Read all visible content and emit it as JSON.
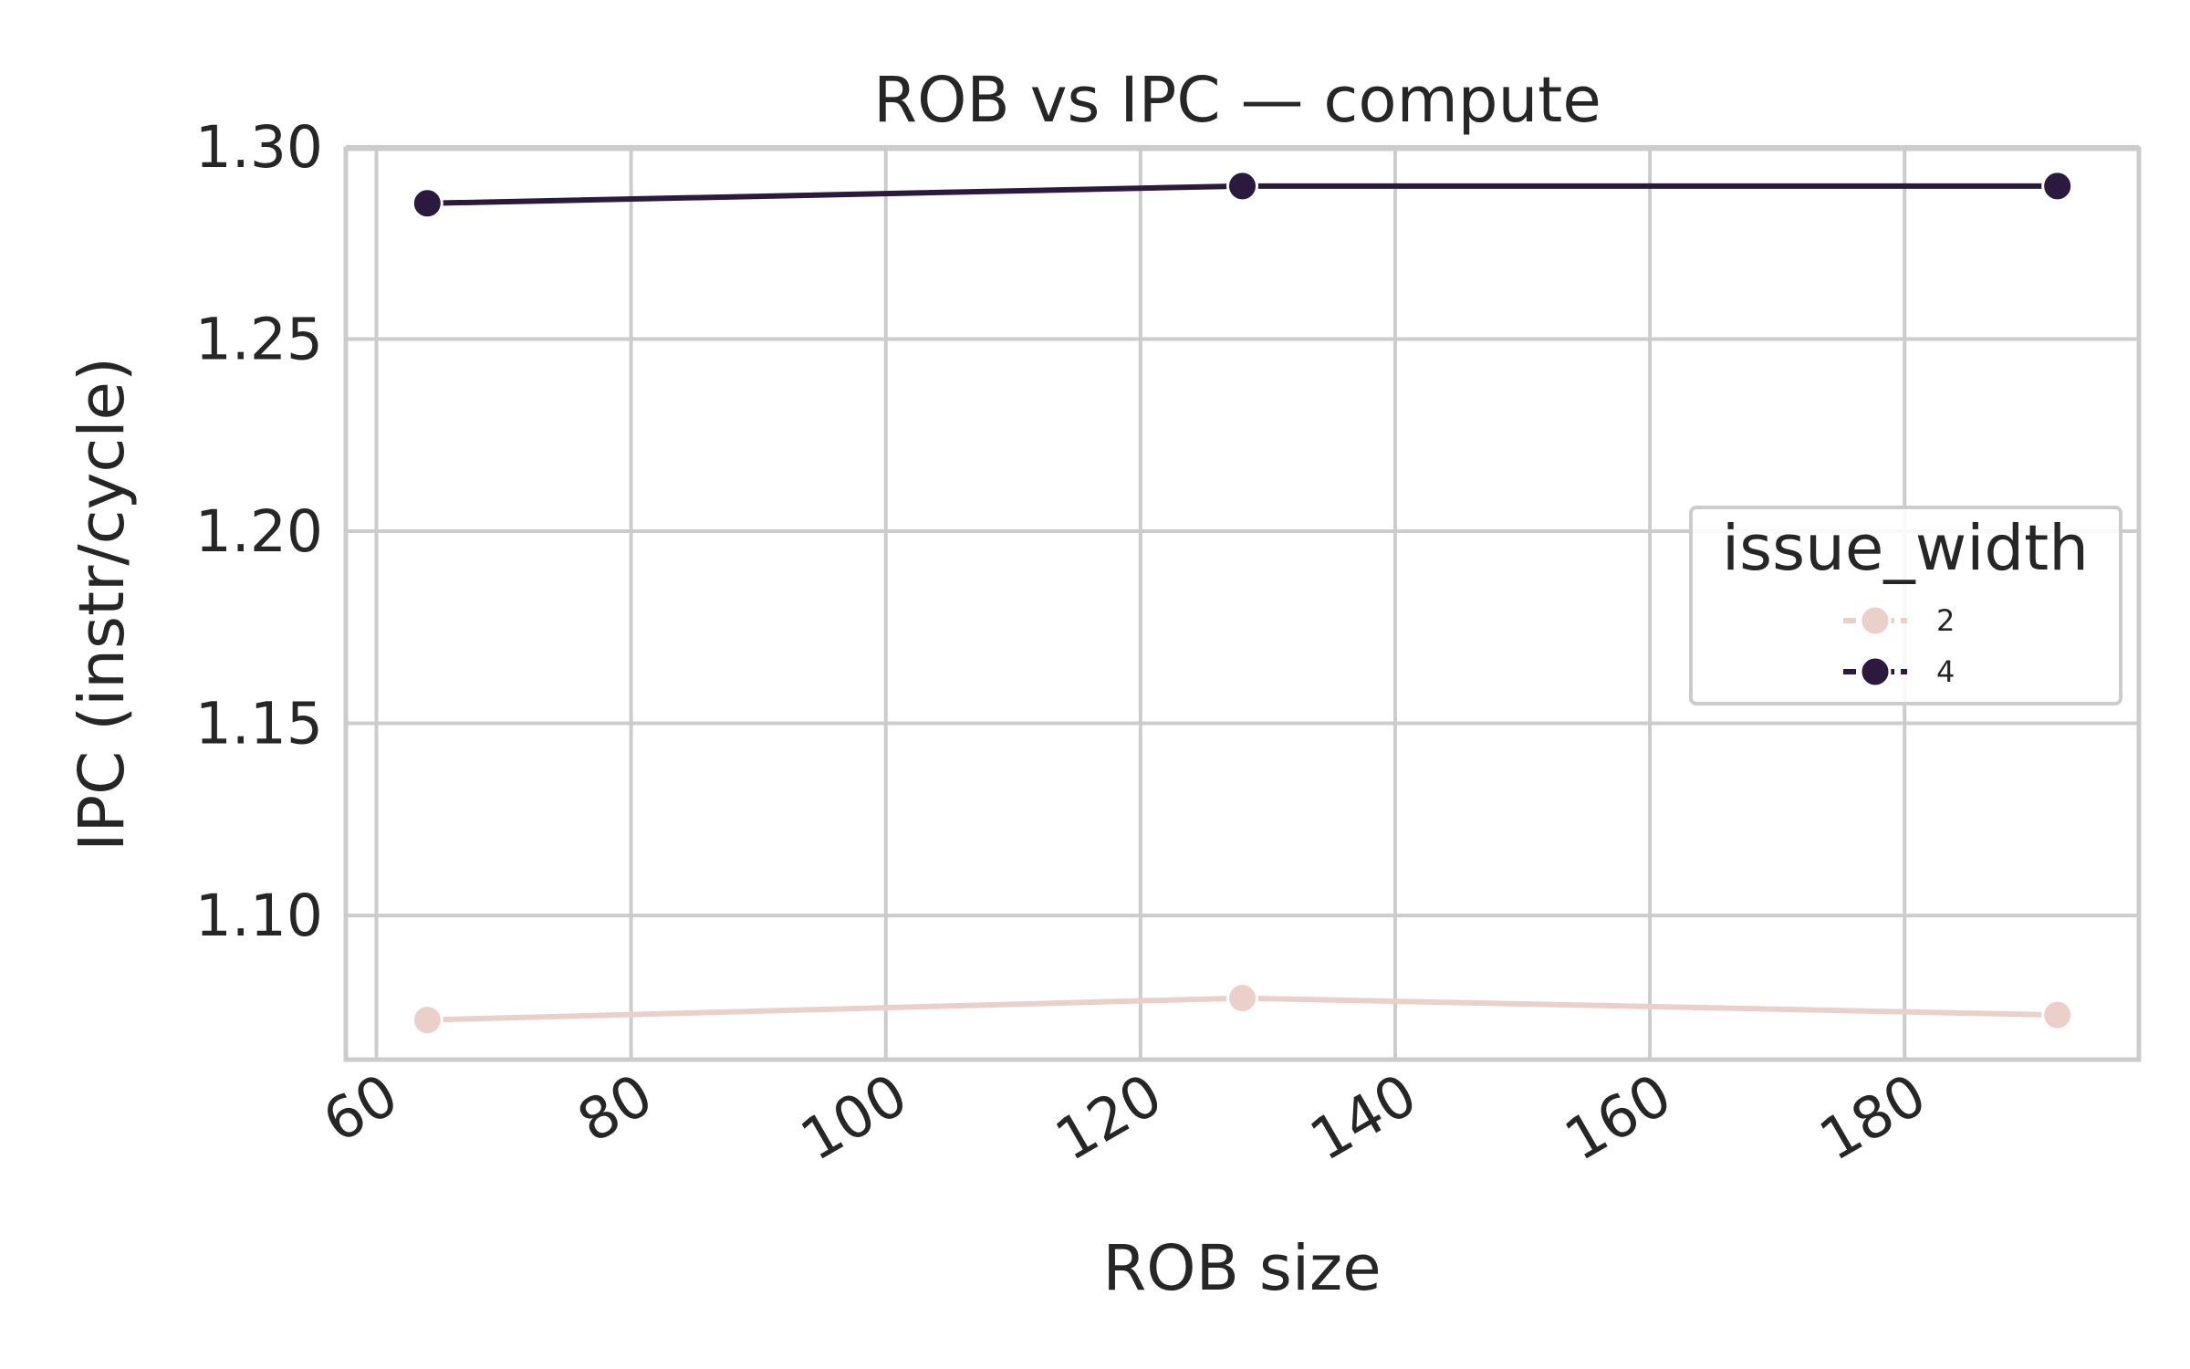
{
  "chart_data": {
    "type": "line",
    "title": "ROB vs IPC — compute",
    "xlabel": "ROB size",
    "ylabel": "IPC (instr/cycle)",
    "x": [
      64,
      128,
      192
    ],
    "xlim": [
      57.6,
      198.4
    ],
    "ylim": [
      1.0625,
      1.2995
    ],
    "xticks": [
      60,
      80,
      100,
      120,
      140,
      160,
      180
    ],
    "yticks": [
      1.1,
      1.15,
      1.2,
      1.25,
      1.3
    ],
    "xtick_labels": [
      "60",
      "80",
      "100",
      "120",
      "140",
      "160",
      "180"
    ],
    "ytick_labels": [
      "1.10",
      "1.15",
      "1.20",
      "1.25",
      "1.30"
    ],
    "grid": true,
    "legend": {
      "title": "issue_width",
      "position": "center-right"
    },
    "series": [
      {
        "name": "2",
        "color": "#ebd0ca",
        "values": [
          1.0728,
          1.0785,
          1.0741
        ]
      },
      {
        "name": "4",
        "color": "#2b1a3d",
        "values": [
          1.2853,
          1.2898,
          1.2898
        ]
      }
    ]
  }
}
